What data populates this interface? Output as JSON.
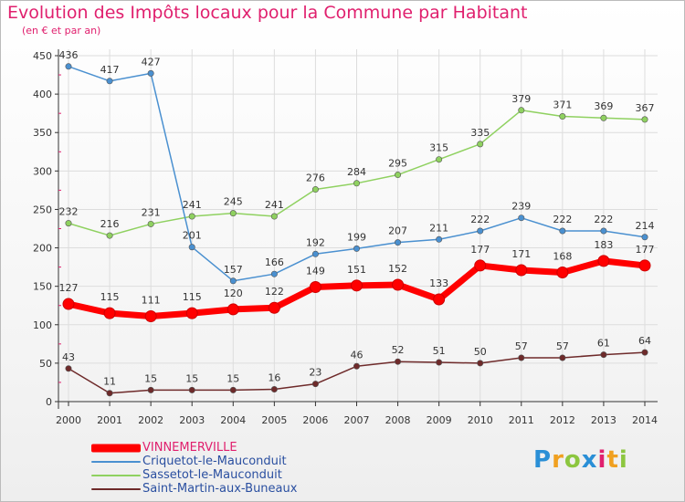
{
  "title": "Evolution des Impôts locaux pour la Commune par Habitant",
  "subtitle": "(en € et par an)",
  "logo": {
    "letters": [
      {
        "ch": "P",
        "color": "#2a8fd6"
      },
      {
        "ch": "r",
        "color": "#f0a020"
      },
      {
        "ch": "o",
        "color": "#8cc63f"
      },
      {
        "ch": "x",
        "color": "#2a8fd6"
      },
      {
        "ch": "i",
        "color": "#e0206e"
      },
      {
        "ch": "t",
        "color": "#f0a020"
      },
      {
        "ch": "i",
        "color": "#8cc63f"
      }
    ]
  },
  "chart_data": {
    "type": "line",
    "title": "Evolution des Impôts locaux pour la Commune par Habitant",
    "ylabel": "(en € et par an)",
    "x": [
      2000,
      2001,
      2002,
      2003,
      2004,
      2005,
      2006,
      2007,
      2008,
      2009,
      2010,
      2011,
      2012,
      2013,
      2014
    ],
    "ylim": [
      0,
      450
    ],
    "yticks": [
      0,
      50,
      100,
      150,
      200,
      250,
      300,
      350,
      400,
      450
    ],
    "grid": true,
    "legend": "bottom-left",
    "series": [
      {
        "name": "VINNEMERVILLE",
        "color": "#ff0000",
        "values": [
          127,
          115,
          111,
          115,
          120,
          122,
          149,
          151,
          152,
          133,
          177,
          171,
          168,
          183,
          177
        ]
      },
      {
        "name": "Criquetot-le-Mauconduit",
        "color": "#4a90d0",
        "values": [
          436,
          417,
          427,
          201,
          157,
          166,
          192,
          199,
          207,
          211,
          222,
          239,
          222,
          222,
          214
        ]
      },
      {
        "name": "Sassetot-le-Mauconduit",
        "color": "#8fd160",
        "values": [
          232,
          216,
          231,
          241,
          245,
          241,
          276,
          284,
          295,
          315,
          335,
          379,
          371,
          369,
          367
        ]
      },
      {
        "name": "Saint-Martin-aux-Buneaux",
        "color": "#6e2a2a",
        "values": [
          43,
          11,
          15,
          15,
          15,
          16,
          23,
          46,
          52,
          51,
          50,
          57,
          57,
          61,
          64
        ]
      }
    ]
  }
}
